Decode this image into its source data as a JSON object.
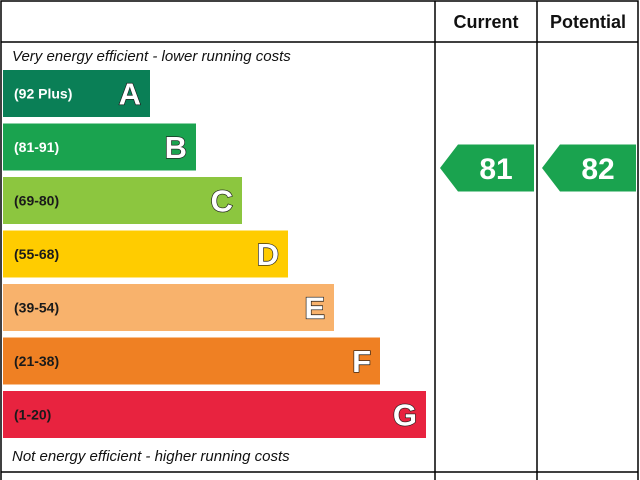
{
  "chart_data": {
    "type": "bar",
    "columns": {
      "current": "Current",
      "potential": "Potential"
    },
    "top_caption": "Very energy efficient - lower running costs",
    "bottom_caption": "Not energy efficient - higher running costs",
    "bands": [
      {
        "letter": "A",
        "range": "(92 Plus)",
        "color": "#0a7f56",
        "label_color": "#ffffff"
      },
      {
        "letter": "B",
        "range": "(81-91)",
        "color": "#1aa34f",
        "label_color": "#ffffff"
      },
      {
        "letter": "C",
        "range": "(69-80)",
        "color": "#8cc63f",
        "label_color": "#1a1a1a"
      },
      {
        "letter": "D",
        "range": "(55-68)",
        "color": "#ffcc00",
        "label_color": "#1a1a1a"
      },
      {
        "letter": "E",
        "range": "(39-54)",
        "color": "#f8b26c",
        "label_color": "#1a1a1a"
      },
      {
        "letter": "F",
        "range": "(21-38)",
        "color": "#ef8023",
        "label_color": "#1a1a1a"
      },
      {
        "letter": "G",
        "range": "(1-20)",
        "color": "#e8233f",
        "label_color": "#1a1a1a"
      }
    ],
    "ratings": [
      {
        "column": "current",
        "value": 81,
        "band": "B",
        "color": "#1aa34f"
      },
      {
        "column": "potential",
        "value": 82,
        "band": "B",
        "color": "#1aa34f"
      }
    ]
  }
}
